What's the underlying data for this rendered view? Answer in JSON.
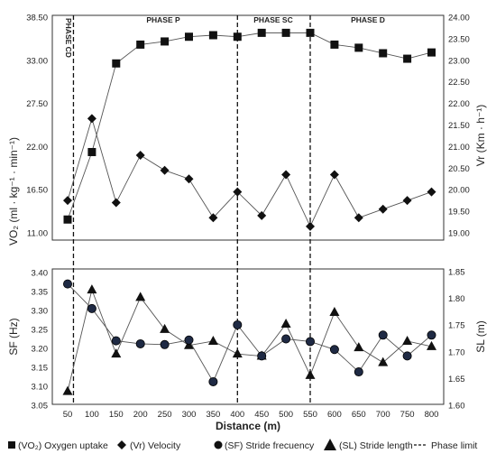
{
  "chart_data": [
    {
      "type": "line",
      "panel": "top",
      "x": [
        50,
        100,
        150,
        200,
        250,
        300,
        350,
        400,
        450,
        500,
        550,
        600,
        650,
        700,
        750,
        800
      ],
      "left_axis": {
        "label": "VO₂ (ml · kg⁻¹ · min⁻¹)",
        "ylim": [
          11.0,
          38.5
        ],
        "ticks": [
          "11.00",
          "16.50",
          "22.00",
          "27.50",
          "33.00",
          "38.50"
        ]
      },
      "right_axis": {
        "label": "Vr (Km · h⁻¹)",
        "ylim": [
          19.0,
          24.0
        ],
        "ticks": [
          "19.00",
          "19.50",
          "20.00",
          "20.50",
          "21.00",
          "21.50",
          "22.00",
          "22.50",
          "23.00",
          "23.50",
          "24.00"
        ]
      },
      "series": [
        {
          "name": "(VO₂) Oxygen uptake",
          "axis": "left",
          "marker": "square",
          "values": [
            12.7,
            21.3,
            32.6,
            35.0,
            35.4,
            36.0,
            36.2,
            36.0,
            36.5,
            36.5,
            36.5,
            35.0,
            34.6,
            33.9,
            33.2,
            34.0
          ]
        },
        {
          "name": "(Vr) Velocity",
          "axis": "right",
          "marker": "diamond",
          "values": [
            19.75,
            21.65,
            19.7,
            20.8,
            20.45,
            20.25,
            19.35,
            19.95,
            19.4,
            20.35,
            19.15,
            20.35,
            19.35,
            19.55,
            19.75,
            19.95
          ]
        }
      ]
    },
    {
      "type": "line",
      "panel": "bottom",
      "x": [
        50,
        100,
        150,
        200,
        250,
        300,
        350,
        400,
        450,
        500,
        550,
        600,
        650,
        700,
        750,
        800
      ],
      "xlabel": "Distance (m)",
      "left_axis": {
        "label": "SF (Hz)",
        "ylim": [
          3.05,
          3.4
        ],
        "ticks": [
          "3.05",
          "3.10",
          "3.15",
          "3.20",
          "3.25",
          "3.30",
          "3.35",
          "3.40"
        ]
      },
      "right_axis": {
        "label": "SL (m)",
        "ylim": [
          1.6,
          1.85
        ],
        "ticks": [
          "1.60",
          "1.65",
          "1.70",
          "1.75",
          "1.80",
          "1.85"
        ]
      },
      "series": [
        {
          "name": "(SF) Stride frecuency",
          "axis": "left",
          "marker": "circle",
          "values": [
            3.37,
            3.305,
            3.22,
            3.212,
            3.21,
            3.222,
            3.112,
            3.262,
            3.18,
            3.225,
            3.218,
            3.197,
            3.138,
            3.235,
            3.18,
            3.235
          ]
        },
        {
          "name": "(SL) Stride length",
          "axis": "right",
          "marker": "triangle",
          "values": [
            1.626,
            1.816,
            1.696,
            1.802,
            1.742,
            1.712,
            1.72,
            1.696,
            1.692,
            1.752,
            1.656,
            1.774,
            1.708,
            1.68,
            1.72,
            1.71
          ]
        }
      ]
    }
  ],
  "phases": [
    {
      "label": "PHASE CD"
    },
    {
      "label": "PHASE P"
    },
    {
      "label": "PHASE SC"
    },
    {
      "label": "PHASE D"
    }
  ],
  "phase_limits": [
    62,
    400,
    550
  ],
  "legend": [
    {
      "marker": "square",
      "label": "(VO₂) Oxygen uptake"
    },
    {
      "marker": "diamond",
      "label": "(Vr) Velocity"
    },
    {
      "marker": "circle",
      "label": "(SF) Stride frecuency"
    },
    {
      "marker": "triangle",
      "label": "(SL) Stride length"
    },
    {
      "marker": "dash",
      "label": "Phase limit"
    }
  ]
}
